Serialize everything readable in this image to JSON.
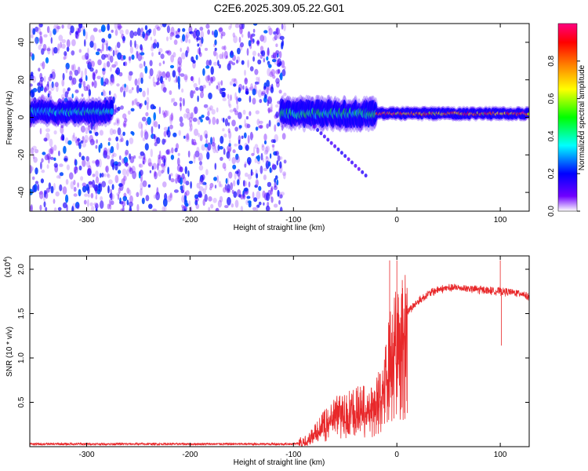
{
  "title": "C2E6.2025.309.05.22.G01",
  "chart_data": [
    {
      "type": "heatmap",
      "name": "spectrogram",
      "xlabel": "Height of straight line (km)",
      "ylabel": "Frequency (Hz)",
      "xlim": [
        -355,
        128
      ],
      "ylim": [
        -50,
        50
      ],
      "xticks": [
        -300,
        -200,
        -100,
        0,
        100
      ],
      "xtick_labels": [
        "-300",
        "-200",
        "-100",
        "0",
        "100"
      ],
      "yticks": [
        -40,
        -20,
        0,
        20,
        40
      ],
      "ytick_labels": [
        "-40",
        "-20",
        "0",
        "20",
        "40"
      ],
      "noise_region_x": [
        -355,
        -108
      ],
      "signal_band_segments": [
        {
          "x": [
            -355,
            -275
          ],
          "center": 3,
          "halfwidth": 5,
          "intensity": 0.45
        },
        {
          "x": [
            -112,
            -20
          ],
          "center": 2,
          "halfwidth": 6,
          "intensity": 0.5
        },
        {
          "x": [
            -20,
            128
          ],
          "center": 2,
          "halfwidth": 2.5,
          "intensity": 0.95
        }
      ],
      "secondary_branch": {
        "x": [
          -80,
          -30
        ],
        "y": [
          -5,
          -31
        ]
      },
      "colorbar": {
        "label": "Normalized spectral amplitude",
        "range": [
          0,
          1
        ],
        "ticks": [
          0,
          0.2,
          0.4,
          0.6,
          0.8
        ],
        "tick_labels": [
          "0.0",
          "0.2",
          "0.4",
          "0.6",
          "0.8"
        ],
        "colors": [
          "#ffffff",
          "#7000ff",
          "#0000ff",
          "#00ffff",
          "#00ff00",
          "#ffff00",
          "#ff8000",
          "#ff0000",
          "#ff0080"
        ]
      }
    },
    {
      "type": "line",
      "name": "snr",
      "xlabel": "Height of straight line (km)",
      "ylabel": "SNR (10 * v/v)",
      "multiplier_label": "(x10",
      "multiplier_exponent": "4",
      "multiplier_close": ")",
      "xlim": [
        -355,
        128
      ],
      "ylim": [
        0,
        2.15
      ],
      "xticks": [
        -300,
        -200,
        -100,
        0,
        100
      ],
      "xtick_labels": [
        "-300",
        "-200",
        "-100",
        "0",
        "100"
      ],
      "yticks": [
        0.5,
        1.0,
        1.5,
        2.0
      ],
      "ytick_labels": [
        "0.5",
        "1.0",
        "1.5",
        "2.0"
      ],
      "color": "#e8282a",
      "envelope": {
        "x": [
          -355,
          -100,
          -88,
          -80,
          -70,
          -60,
          -50,
          -40,
          -30,
          -20,
          -15,
          -10,
          -5,
          0,
          10,
          20,
          30,
          40,
          50,
          60,
          70,
          80,
          90,
          100,
          110,
          120,
          128
        ],
        "y": [
          0.03,
          0.03,
          0.06,
          0.15,
          0.28,
          0.4,
          0.45,
          0.48,
          0.5,
          0.55,
          0.7,
          0.95,
          1.25,
          1.38,
          1.52,
          1.63,
          1.72,
          1.77,
          1.79,
          1.79,
          1.78,
          1.77,
          1.76,
          1.75,
          1.74,
          1.73,
          1.69
        ]
      },
      "spikes": [
        {
          "x": -7,
          "y": 2.1
        },
        {
          "x": 0,
          "y": 2.1
        },
        {
          "x": 10,
          "y": 0.38
        },
        {
          "x": 100,
          "y": 2.1
        },
        {
          "x": 101,
          "y": 1.14
        }
      ]
    }
  ]
}
